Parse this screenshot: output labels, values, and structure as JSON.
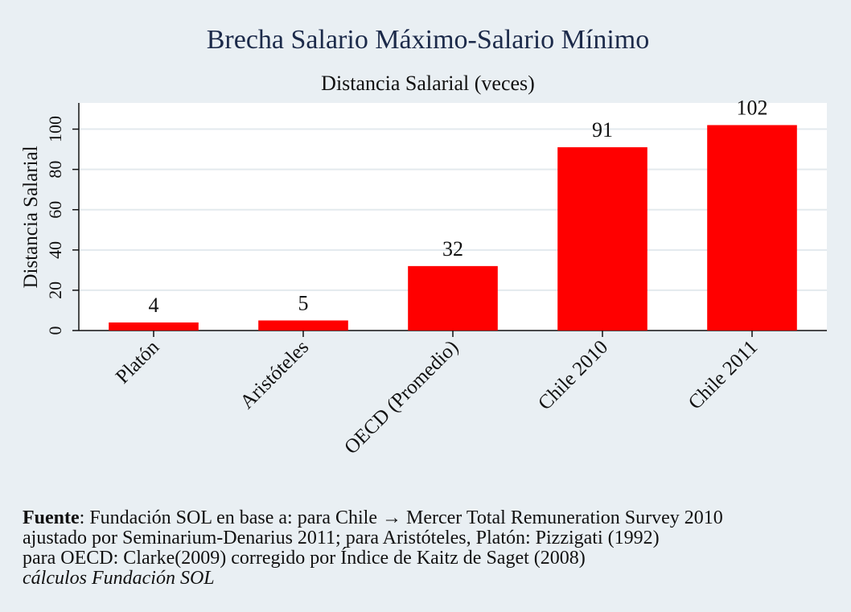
{
  "colors": {
    "bar": "#ff0000",
    "background": "#e9eff3",
    "plot_background": "#ffffff",
    "grid": "#e3eaee",
    "title": "#1c2a4a"
  },
  "chart_data": {
    "type": "bar",
    "title": "Brecha Salario Máximo-Salario Mínimo",
    "subtitle": "Distancia Salarial (veces)",
    "xlabel": "",
    "ylabel": "Distancia Salarial",
    "categories": [
      "Platón",
      "Aristóteles",
      "OECD (Promedio)",
      "Chile 2010",
      "Chile 2011"
    ],
    "values": [
      4,
      5,
      32,
      91,
      102
    ],
    "data_labels": [
      "4",
      "5",
      "32",
      "91",
      "102"
    ],
    "yticks": [
      0,
      20,
      40,
      60,
      80,
      100
    ],
    "ylim": [
      0,
      113
    ],
    "grid": true,
    "legend": "none"
  },
  "note": {
    "source_label": "Fuente",
    "line1_rest": ": Fundación SOL en base a: para Chile → Mercer Total Remuneration Survey 2010",
    "line2": "ajustado por Seminarium-Denarius 2011; para Aristóteles, Platón: Pizzigati (1992)",
    "line3": "para OECD: Clarke(2009) corregido por Índice de Kaitz de Saget (2008)",
    "line4": "cálculos Fundación SOL"
  }
}
